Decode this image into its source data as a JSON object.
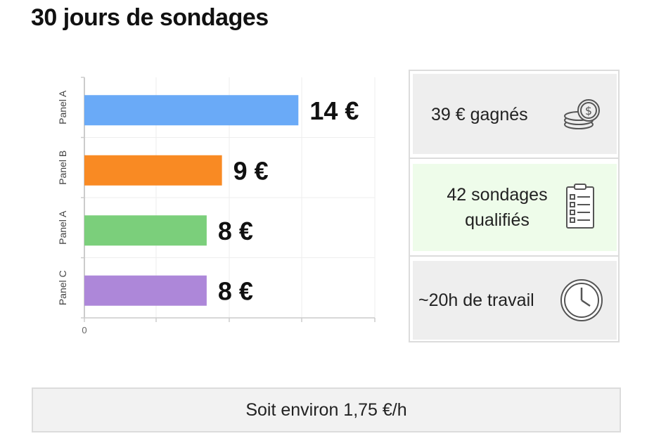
{
  "title": "30 jours de sondages",
  "chart_data": {
    "type": "bar",
    "orientation": "horizontal",
    "categories": [
      "Panel A",
      "Panel B",
      "Panel A",
      "Panel C"
    ],
    "values": [
      14,
      9,
      8,
      8
    ],
    "value_labels": [
      "14 €",
      "9 €",
      "8 €",
      "8 €"
    ],
    "colors": [
      "#6aaaf7",
      "#f98a23",
      "#7bcf7b",
      "#ad87d9"
    ],
    "xlim": [
      0,
      19
    ],
    "x_tick_labels": [
      "0"
    ],
    "grid": true,
    "legend": "none"
  },
  "stats": {
    "earned": {
      "text": "39 € gagnés",
      "icon": "coins-icon"
    },
    "surveys": {
      "line1": "42 sondages",
      "line2": "qualifiés",
      "icon": "checklist-icon"
    },
    "hours": {
      "text": "~20h de travail",
      "icon": "clock-icon"
    }
  },
  "summary": "Soit environ 1,75 €/h"
}
